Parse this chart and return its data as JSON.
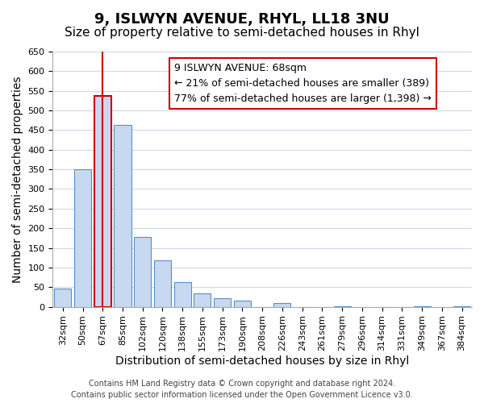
{
  "title": "9, ISLWYN AVENUE, RHYL, LL18 3NU",
  "subtitle": "Size of property relative to semi-detached houses in Rhyl",
  "xlabel": "Distribution of semi-detached houses by size in Rhyl",
  "ylabel": "Number of semi-detached properties",
  "bin_labels": [
    "32sqm",
    "50sqm",
    "67sqm",
    "85sqm",
    "102sqm",
    "120sqm",
    "138sqm",
    "155sqm",
    "173sqm",
    "190sqm",
    "208sqm",
    "226sqm",
    "243sqm",
    "261sqm",
    "279sqm",
    "296sqm",
    "314sqm",
    "331sqm",
    "349sqm",
    "367sqm",
    "384sqm"
  ],
  "bar_heights": [
    47,
    350,
    537,
    463,
    178,
    118,
    62,
    35,
    22,
    15,
    0,
    10,
    0,
    0,
    2,
    0,
    0,
    0,
    2,
    0,
    2
  ],
  "bar_color": "#c6d9f0",
  "bar_edge_color": "#5a8fc3",
  "highlight_bar_index": 2,
  "highlight_bar_edge_color": "#cc0000",
  "vline_x_index": 2,
  "vline_color": "#cc0000",
  "ylim": [
    0,
    650
  ],
  "yticks": [
    0,
    50,
    100,
    150,
    200,
    250,
    300,
    350,
    400,
    450,
    500,
    550,
    600,
    650
  ],
  "annotation_title": "9 ISLWYN AVENUE: 68sqm",
  "annotation_line1": "← 21% of semi-detached houses are smaller (389)",
  "annotation_line2": "77% of semi-detached houses are larger (1,398) →",
  "footer_line1": "Contains HM Land Registry data © Crown copyright and database right 2024.",
  "footer_line2": "Contains public sector information licensed under the Open Government Licence v3.0.",
  "title_fontsize": 13,
  "subtitle_fontsize": 11,
  "axis_label_fontsize": 10,
  "tick_fontsize": 8,
  "annotation_fontsize": 9,
  "footer_fontsize": 7,
  "background_color": "#ffffff",
  "grid_color": "#d0d8e8"
}
